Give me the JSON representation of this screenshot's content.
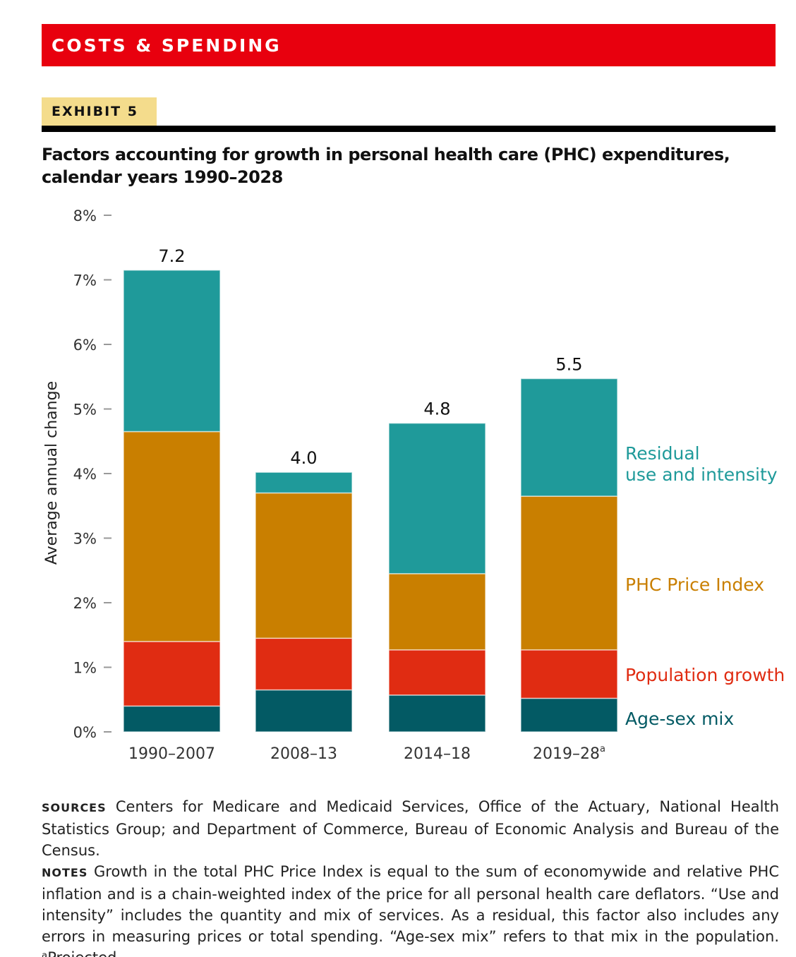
{
  "header": {
    "section": "COSTS & SPENDING",
    "exhibit": "EXHIBIT 5"
  },
  "chart_data": {
    "type": "bar",
    "stacked": true,
    "title": "Factors accounting for growth in personal health care (PHC) expenditures, calendar years 1990–2028",
    "ylabel": "Average annual change",
    "ylim": [
      0,
      8
    ],
    "yticks": [
      "0%",
      "1%",
      "2%",
      "3%",
      "4%",
      "5%",
      "6%",
      "7%",
      "8%"
    ],
    "categories": [
      "1990–2007",
      "2008–13",
      "2014–18",
      "2019–28"
    ],
    "category_superscripts": [
      "",
      "",
      "",
      "a"
    ],
    "totals": [
      "7.2",
      "4.0",
      "4.8",
      "5.5"
    ],
    "legend_placement": "right, inline labels",
    "series": [
      {
        "name": "Age-sex mix",
        "color": "#035a64",
        "values": [
          0.4,
          0.65,
          0.57,
          0.52
        ]
      },
      {
        "name": "Population growth",
        "color": "#e02c12",
        "values": [
          1.0,
          0.8,
          0.7,
          0.75
        ]
      },
      {
        "name": "PHC Price Index",
        "color": "#c97f00",
        "values": [
          3.25,
          2.25,
          1.18,
          2.38
        ]
      },
      {
        "name": "Residual use and intensity",
        "color": "#1f9a9a",
        "values": [
          2.5,
          0.32,
          2.33,
          1.82
        ]
      }
    ],
    "legend_lines": [
      [
        "Age-sex mix"
      ],
      [
        "Population growth"
      ],
      [
        "PHC Price Index"
      ],
      [
        "Residual",
        "use and intensity"
      ]
    ]
  },
  "notes": {
    "sources_label": "SOURCES",
    "sources": "Centers for Medicare and Medicaid Services, Office of the Actuary, National Health Statistics Group; and Department of Commerce, Bureau of Economic Analysis and Bureau of the Census.",
    "notes_label": "NOTES",
    "notes": "Growth in the total PHC Price Index is equal to the sum of economywide and relative PHC inflation and is a chain-weighted index of the price for all personal health care deflators. “Use and intensity” includes the quantity and mix of services. As a residual, this factor also includes any errors in measuring prices or total spending. “Age-sex mix” refers to that mix in the population. ᵃProjected."
  }
}
